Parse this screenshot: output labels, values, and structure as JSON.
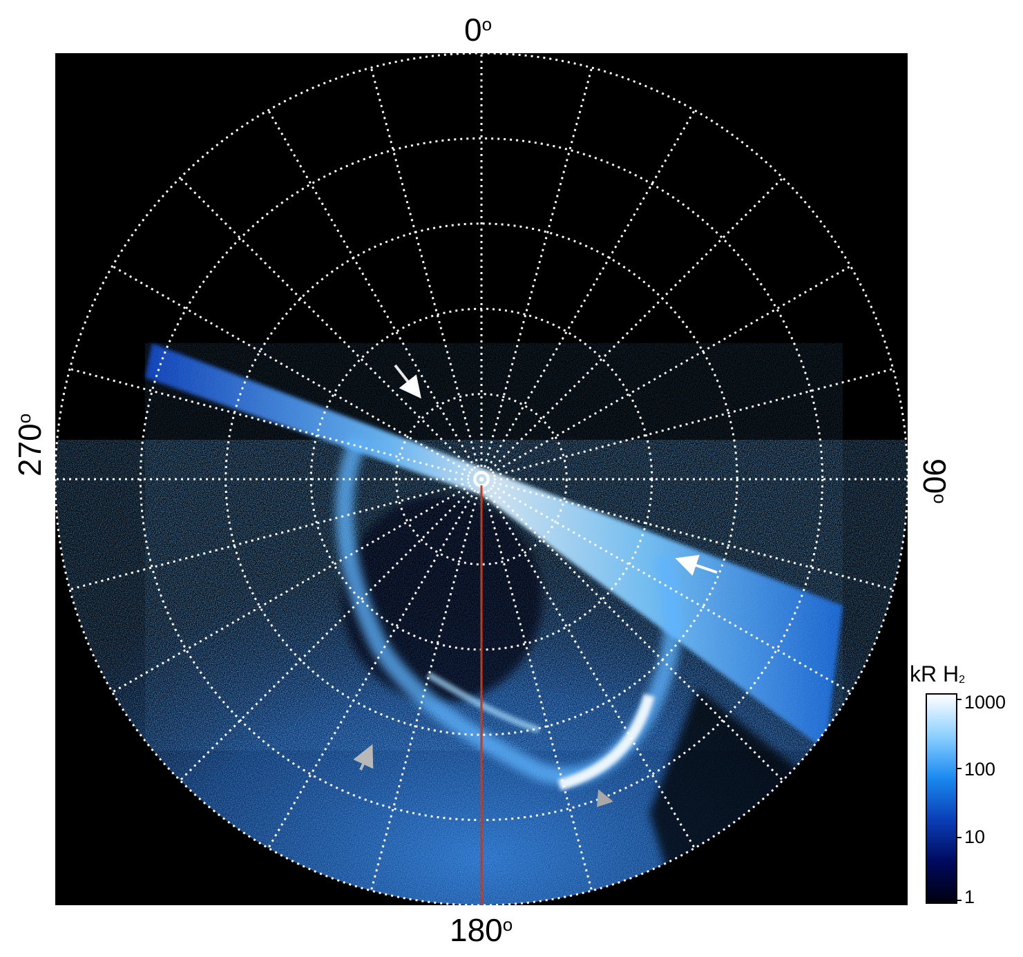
{
  "axis_labels": {
    "top": "0",
    "bottom": "180",
    "left": "270",
    "right": "90",
    "degree": "o"
  },
  "colorbar": {
    "title_main": "kR H",
    "title_sub": "2",
    "ticks": [
      "1000",
      "100",
      "10",
      "1"
    ],
    "scale": "log",
    "colors": [
      "#000010",
      "#000a60",
      "#0a3fb8",
      "#1a8af0",
      "#8cd0ff",
      "#ffffff"
    ]
  },
  "colors": {
    "background": "#000000",
    "grid": "#ffffff",
    "meridian": "#c8391a",
    "emission": "#2f8ff5",
    "arrow_white": "#ffffff",
    "arrow_gray": "#b0b0b0"
  },
  "grid": {
    "style": "dotted",
    "meridian_count": 24,
    "parallel_count": 5,
    "projection": "polar"
  }
}
